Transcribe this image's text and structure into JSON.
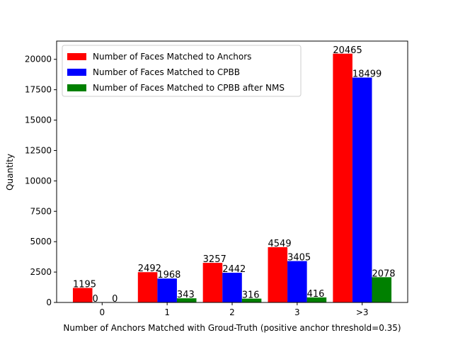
{
  "chart_data": {
    "type": "bar",
    "title": "",
    "xlabel": "Number of Anchors Matched with Groud-Truth (positive anchor threshold=0.35)",
    "ylabel": "Quantity",
    "categories": [
      "0",
      "1",
      "2",
      "3",
      ">3"
    ],
    "ylim": [
      0,
      21500
    ],
    "yticks": [
      0,
      2500,
      5000,
      7500,
      10000,
      12500,
      15000,
      17500,
      20000
    ],
    "grid": false,
    "legend_position": "top-left",
    "series": [
      {
        "name": "Number of Faces Matched to Anchors",
        "color": "#ff0000",
        "values": [
          1195,
          2492,
          3257,
          4549,
          20465
        ]
      },
      {
        "name": "Number of Faces Matched to CPBB",
        "color": "#0000ff",
        "values": [
          0,
          1968,
          2442,
          3405,
          18499
        ]
      },
      {
        "name": "Number of Faces Matched to CPBB after NMS",
        "color": "#008000",
        "values": [
          0,
          343,
          316,
          416,
          2078
        ]
      }
    ]
  }
}
